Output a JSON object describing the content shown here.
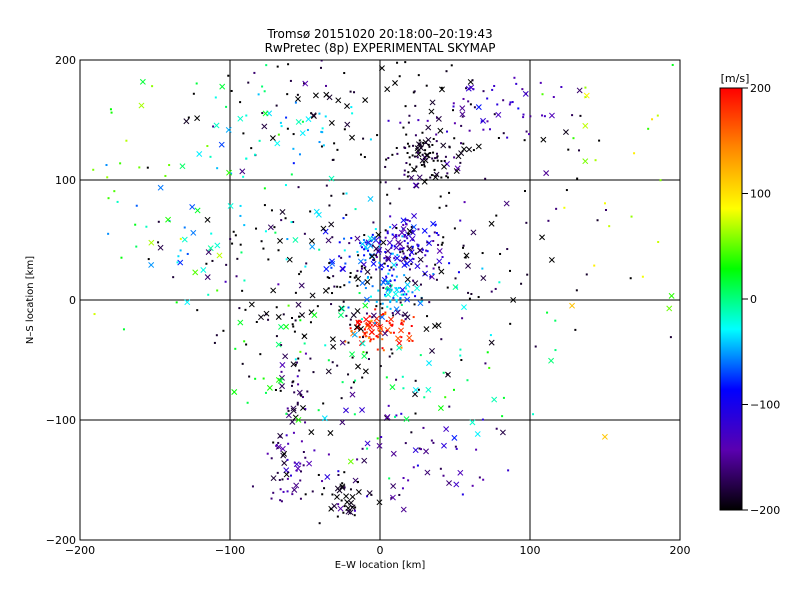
{
  "chart_data": {
    "type": "scatter",
    "title": "Tromsø 20151020 20:18:00–20:19:43",
    "subtitle": "RwPretec (8p) EXPERIMENTAL SKYMAP",
    "xlabel": "E–W location [km]",
    "ylabel": "N–S location [km]",
    "xlim": [
      -200,
      200
    ],
    "ylim": [
      -200,
      200
    ],
    "x_ticks": [
      "−200",
      "−100",
      "0",
      "100",
      "200"
    ],
    "y_ticks": [
      "−200",
      "−100",
      "0",
      "100",
      "200"
    ],
    "grid": true,
    "colorbar": {
      "label": "[m/s]",
      "range": [
        -200,
        200
      ],
      "ticks": [
        "200",
        "100",
        "0",
        "−100",
        "−200"
      ],
      "colors": [
        "#000000",
        "#5a00b0",
        "#0000ff",
        "#00ffff",
        "#00ff00",
        "#ffff00",
        "#ff8800",
        "#ff0000"
      ]
    },
    "clusters": [
      {
        "x": 30,
        "y": 120,
        "sx": 14,
        "sy": 10,
        "n": 90,
        "v": -200
      },
      {
        "x": 20,
        "y": 45,
        "sx": 14,
        "sy": 12,
        "n": 110,
        "v": -120
      },
      {
        "x": -5,
        "y": 40,
        "sx": 14,
        "sy": 12,
        "n": 70,
        "v": -80
      },
      {
        "x": 10,
        "y": 5,
        "sx": 8,
        "sy": 8,
        "n": 60,
        "v": -50
      },
      {
        "x": 0,
        "y": -25,
        "sx": 12,
        "sy": 8,
        "n": 80,
        "v": 190
      },
      {
        "x": -30,
        "y": 10,
        "sx": 50,
        "sy": 50,
        "n": 260,
        "v": -200
      },
      {
        "x": 70,
        "y": 160,
        "sx": 30,
        "sy": 12,
        "n": 60,
        "v": -140
      },
      {
        "x": -20,
        "y": 160,
        "sx": 60,
        "sy": 30,
        "n": 100,
        "v": -200
      },
      {
        "x": -60,
        "y": 140,
        "sx": 30,
        "sy": 25,
        "n": 40,
        "v": -20
      },
      {
        "x": -65,
        "y": -140,
        "sx": 8,
        "sy": 18,
        "n": 50,
        "v": -160
      },
      {
        "x": -55,
        "y": -75,
        "sx": 6,
        "sy": 15,
        "n": 30,
        "v": -170
      },
      {
        "x": -25,
        "y": -165,
        "sx": 12,
        "sy": 10,
        "n": 45,
        "v": -200
      },
      {
        "x": 20,
        "y": -130,
        "sx": 30,
        "sy": 25,
        "n": 60,
        "v": -150
      },
      {
        "x": 0,
        "y": -60,
        "sx": 60,
        "sy": 40,
        "n": 80,
        "v": 0
      },
      {
        "x": -100,
        "y": 80,
        "sx": 50,
        "sy": 40,
        "n": 60,
        "v": -30
      },
      {
        "x": 100,
        "y": 60,
        "sx": 50,
        "sy": 50,
        "n": 50,
        "v": -200
      },
      {
        "x": -160,
        "y": 120,
        "sx": 25,
        "sy": 60,
        "n": 30,
        "v": 50
      },
      {
        "x": 140,
        "y": 100,
        "sx": 40,
        "sy": 80,
        "n": 30,
        "v": 60
      }
    ]
  }
}
